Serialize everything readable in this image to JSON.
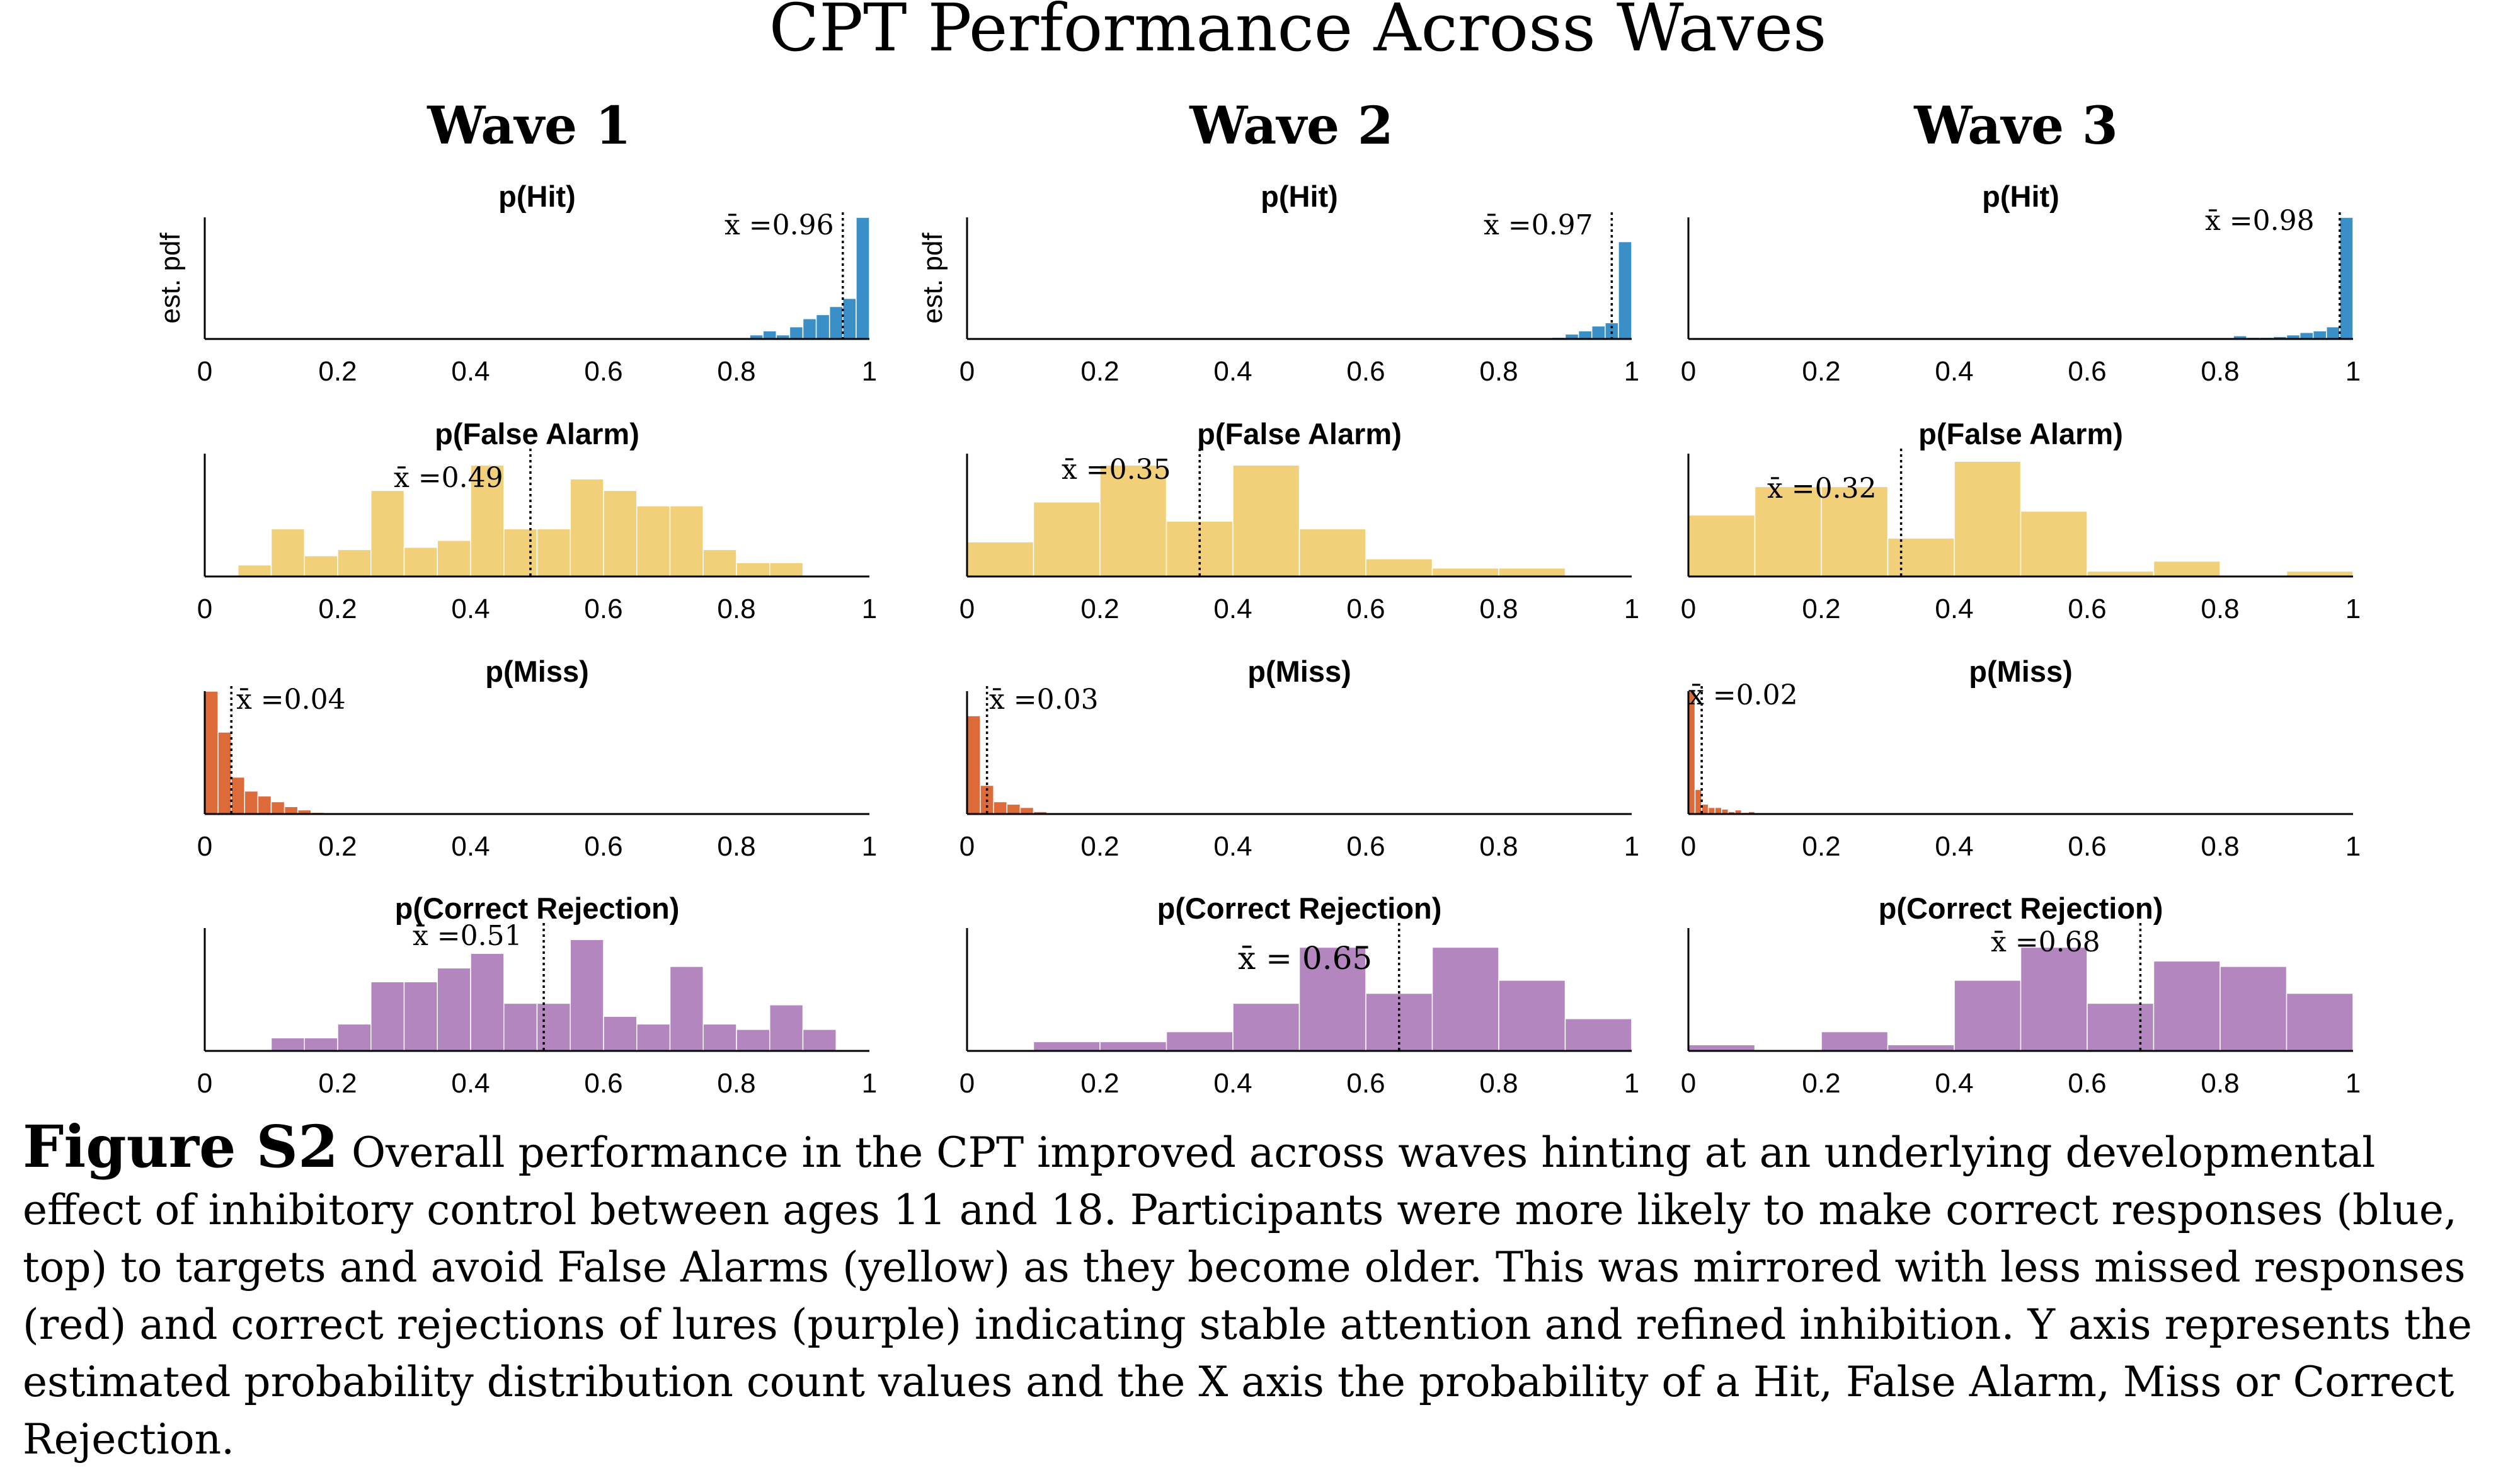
{
  "figure": {
    "title": "CPT Performance Across Waves",
    "ylabel": "est. pdf",
    "xticks": [
      "0",
      "0.2",
      "0.4",
      "0.6",
      "0.8",
      "1"
    ],
    "colors": {
      "hit": "#3a8fc7",
      "false_alarm": "#f2cf79",
      "miss": "#dd6b3a",
      "correct_rejection": "#b486c0"
    }
  },
  "caption": {
    "label": "Figure S2",
    "text": "Overall performance in the CPT improved across waves hinting at an underlying developmental effect of inhibitory control between ages 11 and 18. Participants were more likely to make correct responses (blue, top) to targets and avoid False Alarms (yellow) as they become older. This was mirrored with less missed responses (red) and correct rejections of lures (purple) indicating stable attention and refined inhibition. Y axis represents the estimated probability distribution count values and the X axis the probability of a Hit, False Alarm, Miss or Correct Rejection."
  },
  "chart_data": [
    {
      "type": "bar",
      "wave": "Wave 1",
      "title": "p(Hit)",
      "xlabel": "",
      "ylabel": "est. pdf",
      "xlim": [
        0,
        1
      ],
      "ylim": [
        0,
        15
      ],
      "color": "hit",
      "bin_edges": [
        0.82,
        0.84,
        0.86,
        0.88,
        0.9,
        0.92,
        0.94,
        0.96,
        0.98,
        1.0
      ],
      "values": [
        0.5,
        1.0,
        0.5,
        1.5,
        2.5,
        3.0,
        4.0,
        5.0,
        15.0
      ],
      "mean": 0.96,
      "mean_label": "x̄ =0.96"
    },
    {
      "type": "bar",
      "wave": "Wave 1",
      "title": "p(False Alarm)",
      "xlabel": "",
      "ylabel": "",
      "xlim": [
        0,
        1
      ],
      "ylim": [
        0,
        1.6
      ],
      "color": "false_alarm",
      "bin_edges": [
        0.05,
        0.1,
        0.15,
        0.2,
        0.25,
        0.3,
        0.35,
        0.4,
        0.45,
        0.5,
        0.55,
        0.6,
        0.65,
        0.7,
        0.75,
        0.8,
        0.85,
        0.9
      ],
      "values": [
        0.15,
        0.62,
        0.27,
        0.35,
        1.12,
        0.38,
        0.47,
        1.45,
        0.62,
        0.62,
        1.27,
        1.12,
        0.92,
        0.92,
        0.35,
        0.18,
        0.18
      ],
      "mean": 0.49,
      "mean_label": "x̄ =0.49"
    },
    {
      "type": "bar",
      "wave": "Wave 1",
      "title": "p(Miss)",
      "xlabel": "",
      "ylabel": "",
      "xlim": [
        0,
        1
      ],
      "ylim": [
        0,
        15
      ],
      "color": "miss",
      "bin_edges": [
        0,
        0.02,
        0.04,
        0.06,
        0.08,
        0.1,
        0.12,
        0.14,
        0.16,
        0.18
      ],
      "values": [
        15.0,
        10.0,
        4.5,
        2.8,
        2.2,
        1.5,
        0.9,
        0.5,
        0.2
      ],
      "mean": 0.04,
      "mean_label": "x̄ =0.04"
    },
    {
      "type": "bar",
      "wave": "Wave 1",
      "title": "p(Correct Rejection)",
      "xlabel": "",
      "ylabel": "",
      "xlim": [
        0,
        1
      ],
      "ylim": [
        0,
        1.6
      ],
      "color": "correct_rejection",
      "bin_edges": [
        0.1,
        0.15,
        0.2,
        0.25,
        0.3,
        0.35,
        0.4,
        0.45,
        0.5,
        0.55,
        0.6,
        0.65,
        0.7,
        0.75,
        0.8,
        0.85,
        0.9,
        0.95
      ],
      "values": [
        0.17,
        0.17,
        0.35,
        0.9,
        0.9,
        1.08,
        1.27,
        0.62,
        0.62,
        1.45,
        0.45,
        0.35,
        1.1,
        0.35,
        0.28,
        0.6,
        0.28
      ],
      "mean": 0.51,
      "mean_label": "x̄ =0.51"
    },
    {
      "type": "bar",
      "wave": "Wave 2",
      "title": "p(Hit)",
      "xlabel": "",
      "ylabel": "est. pdf",
      "xlim": [
        0,
        1
      ],
      "ylim": [
        0,
        15
      ],
      "color": "hit",
      "bin_edges": [
        0.88,
        0.9,
        0.92,
        0.94,
        0.96,
        0.98,
        1.0
      ],
      "values": [
        0.2,
        0.6,
        1.0,
        1.6,
        2.0,
        12.0
      ],
      "mean": 0.97,
      "mean_label": "x̄ =0.97"
    },
    {
      "type": "bar",
      "wave": "Wave 2",
      "title": "p(False Alarm)",
      "xlabel": "",
      "ylabel": "",
      "xlim": [
        0,
        1
      ],
      "ylim": [
        0,
        1.6
      ],
      "color": "false_alarm",
      "bin_edges": [
        0,
        0.1,
        0.2,
        0.3,
        0.4,
        0.5,
        0.6,
        0.7,
        0.8,
        0.9
      ],
      "values": [
        0.45,
        0.97,
        1.45,
        0.72,
        1.45,
        0.62,
        0.23,
        0.11,
        0.11
      ],
      "mean": 0.35,
      "mean_label": "x̄ =0.35"
    },
    {
      "type": "bar",
      "wave": "Wave 2",
      "title": "p(Miss)",
      "xlabel": "",
      "ylabel": "",
      "xlim": [
        0,
        1
      ],
      "ylim": [
        0,
        15
      ],
      "color": "miss",
      "bin_edges": [
        0,
        0.02,
        0.04,
        0.06,
        0.08,
        0.1,
        0.12
      ],
      "values": [
        12.0,
        3.5,
        1.5,
        1.2,
        0.8,
        0.3
      ],
      "mean": 0.03,
      "mean_label": "x̄ =0.03"
    },
    {
      "type": "bar",
      "wave": "Wave 2",
      "title": "p(Correct Rejection)",
      "xlabel": "",
      "ylabel": "",
      "xlim": [
        0,
        1
      ],
      "ylim": [
        0,
        1.6
      ],
      "color": "correct_rejection",
      "bin_edges": [
        0.1,
        0.2,
        0.3,
        0.4,
        0.5,
        0.6,
        0.7,
        0.8,
        0.9,
        1.0
      ],
      "values": [
        0.12,
        0.12,
        0.25,
        0.62,
        1.35,
        0.75,
        1.35,
        0.92,
        0.42
      ],
      "mean": 0.65,
      "mean_label": "x̄ = 0.65"
    },
    {
      "type": "bar",
      "wave": "Wave 3",
      "title": "p(Hit)",
      "xlabel": "",
      "ylabel": "",
      "xlim": [
        0,
        1
      ],
      "ylim": [
        0,
        15
      ],
      "color": "hit",
      "bin_edges": [
        0.82,
        0.84,
        0.86,
        0.88,
        0.9,
        0.92,
        0.94,
        0.96,
        0.98,
        1.0
      ],
      "values": [
        0.4,
        0.2,
        0.2,
        0.3,
        0.5,
        0.8,
        1.0,
        1.5,
        15.0
      ],
      "mean": 0.98,
      "mean_label": "x̄ =0.98"
    },
    {
      "type": "bar",
      "wave": "Wave 3",
      "title": "p(False Alarm)",
      "xlabel": "",
      "ylabel": "",
      "xlim": [
        0,
        1
      ],
      "ylim": [
        0,
        1.6
      ],
      "color": "false_alarm",
      "bin_edges": [
        0,
        0.1,
        0.2,
        0.3,
        0.4,
        0.5,
        0.6,
        0.7,
        0.8,
        0.9,
        1.0
      ],
      "values": [
        0.8,
        1.17,
        1.17,
        0.5,
        1.5,
        0.85,
        0.07,
        0.2,
        0.0,
        0.07
      ],
      "mean": 0.32,
      "mean_label": "x̄ =0.32"
    },
    {
      "type": "bar",
      "wave": "Wave 3",
      "title": "p(Miss)",
      "xlabel": "",
      "ylabel": "",
      "xlim": [
        0,
        1
      ],
      "ylim": [
        0,
        15
      ],
      "color": "miss",
      "bin_edges": [
        0,
        0.01,
        0.02,
        0.03,
        0.04,
        0.05,
        0.06,
        0.07,
        0.08,
        0.09,
        0.1,
        0.11,
        0.12,
        0.13,
        0.14,
        0.15,
        0.16,
        0.17,
        0.18
      ],
      "values": [
        15.0,
        3.0,
        1.2,
        0.8,
        0.8,
        0.6,
        0.3,
        0.5,
        0.2,
        0.3,
        0.1,
        0.0,
        0.0,
        0.0,
        0.0,
        0.0,
        0.0,
        0.15
      ],
      "mean": 0.02,
      "mean_label": "x̄ =0.02"
    },
    {
      "type": "bar",
      "wave": "Wave 3",
      "title": "p(Correct Rejection)",
      "xlabel": "",
      "ylabel": "",
      "xlim": [
        0,
        1
      ],
      "ylim": [
        0,
        1.6
      ],
      "color": "correct_rejection",
      "bin_edges": [
        0,
        0.1,
        0.2,
        0.3,
        0.4,
        0.5,
        0.6,
        0.7,
        0.8,
        0.9,
        1.0
      ],
      "values": [
        0.08,
        0.0,
        0.25,
        0.08,
        0.92,
        1.35,
        0.62,
        1.17,
        1.1,
        0.75
      ],
      "mean": 0.68,
      "mean_label": "x̄ =0.68"
    }
  ]
}
